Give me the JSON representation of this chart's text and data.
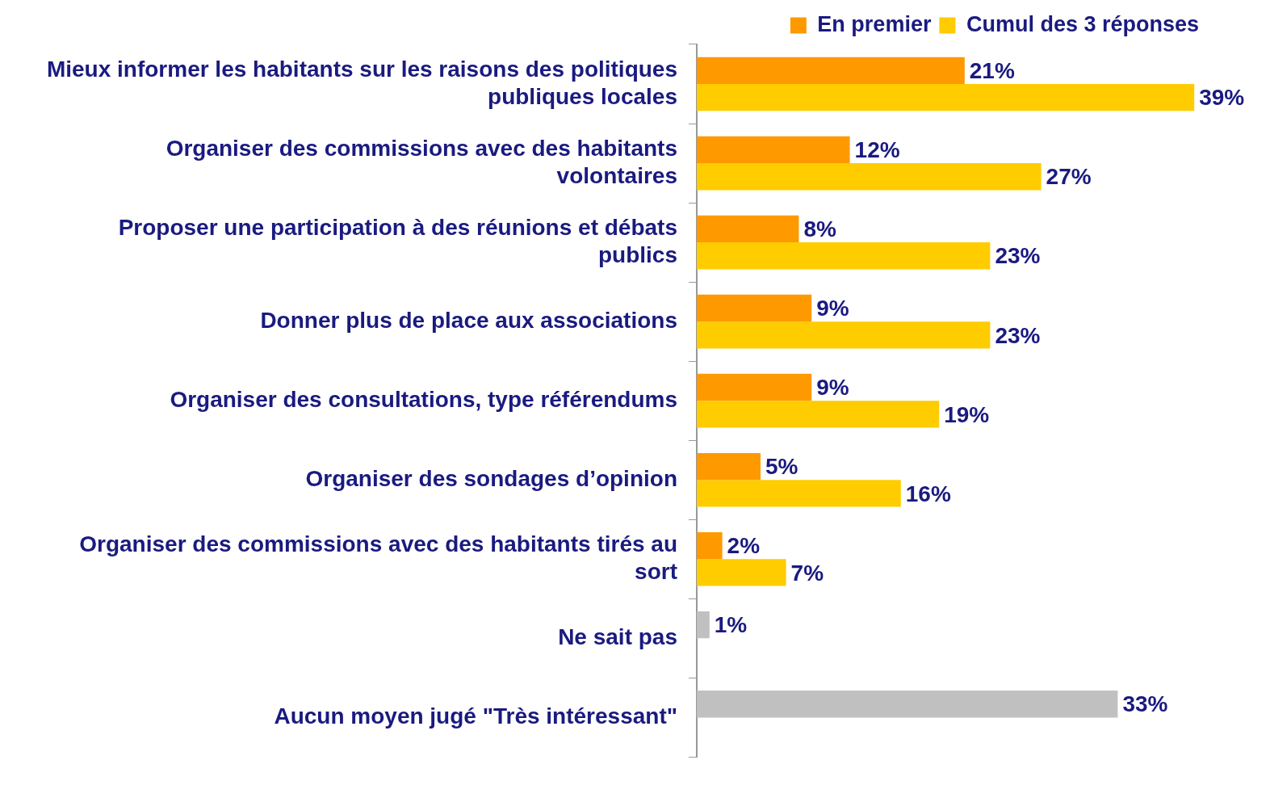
{
  "chart_data": {
    "type": "bar",
    "orientation": "horizontal",
    "categories": [
      "Mieux informer les habitants sur les raisons des politiques publiques locales",
      "Organiser des commissions avec des habitants volontaires",
      "Proposer une participation à des réunions et débats publics",
      "Donner plus de place aux associations",
      "Organiser des consultations, type référendums",
      "Organiser des sondages d’opinion",
      "Organiser des commissions avec des habitants tirés au sort",
      "Ne sait pas",
      "Aucun moyen jugé \"Très intéressant\""
    ],
    "series": [
      {
        "name": "En premier",
        "color": "#ff9900",
        "colors": [
          "#ff9900",
          "#ff9900",
          "#ff9900",
          "#ff9900",
          "#ff9900",
          "#ff9900",
          "#ff9900",
          "#c0c0c0",
          "#c0c0c0"
        ],
        "values": [
          21,
          12,
          8,
          9,
          9,
          5,
          2,
          1,
          33
        ],
        "value_labels": [
          "21%",
          "12%",
          "8%",
          "9%",
          "9%",
          "5%",
          "2%",
          "1%",
          "33%"
        ]
      },
      {
        "name": "Cumul des 3 réponses",
        "color": "#ffcc00",
        "values": [
          39,
          27,
          23,
          23,
          19,
          16,
          7,
          null,
          null
        ],
        "value_labels": [
          "39%",
          "27%",
          "23%",
          "23%",
          "19%",
          "16%",
          "7%",
          null,
          null
        ]
      }
    ],
    "grid": false,
    "legend": "top right"
  }
}
